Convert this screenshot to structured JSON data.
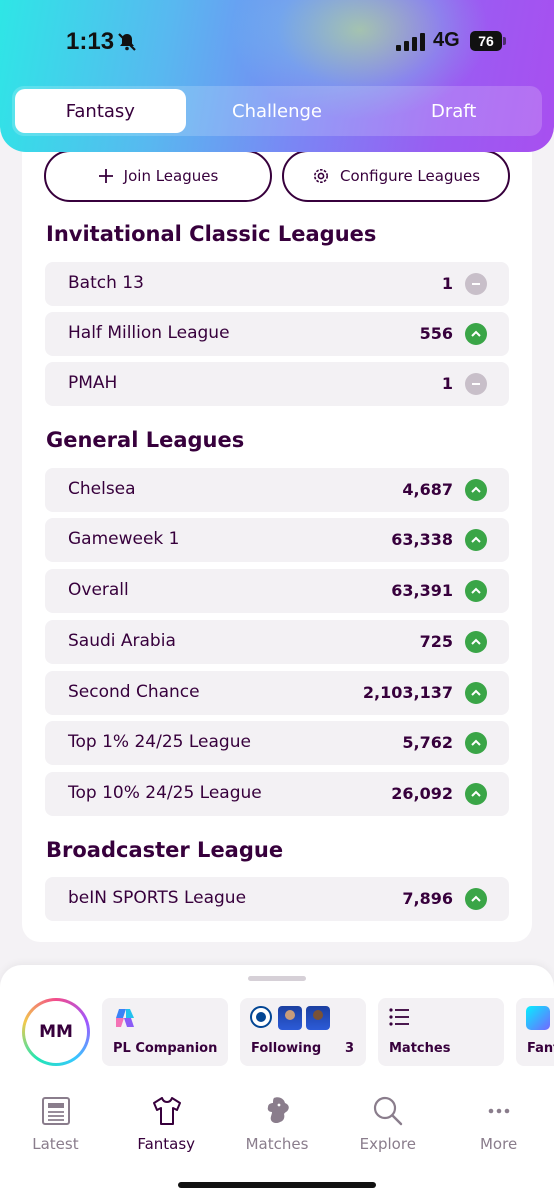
{
  "status": {
    "time": "1:13",
    "network": "4G",
    "battery": "76"
  },
  "tabs": [
    {
      "label": "Fantasy",
      "active": true
    },
    {
      "label": "Challenge",
      "active": false
    },
    {
      "label": "Draft",
      "active": false
    }
  ],
  "actions": {
    "join": "Join Leagues",
    "configure": "Configure Leagues"
  },
  "sections": {
    "invitational": {
      "title": "Invitational Classic Leagues",
      "rows": [
        {
          "name": "Batch 13",
          "rank": "1",
          "movement": "same"
        },
        {
          "name": "Half Million League",
          "rank": "556",
          "movement": "up"
        },
        {
          "name": "PMAH",
          "rank": "1",
          "movement": "same"
        }
      ]
    },
    "general": {
      "title": "General Leagues",
      "rows": [
        {
          "name": "Chelsea",
          "rank": "4,687",
          "movement": "up"
        },
        {
          "name": "Gameweek 1",
          "rank": "63,338",
          "movement": "up"
        },
        {
          "name": "Overall",
          "rank": "63,391",
          "movement": "up"
        },
        {
          "name": "Saudi Arabia",
          "rank": "725",
          "movement": "up"
        },
        {
          "name": "Second Chance",
          "rank": "2,103,137",
          "movement": "up"
        },
        {
          "name": "Top 1% 24/25 League",
          "rank": "5,762",
          "movement": "up"
        },
        {
          "name": "Top 10% 24/25 League",
          "rank": "26,092",
          "movement": "up"
        }
      ]
    },
    "broadcaster": {
      "title": "Broadcaster League",
      "rows": [
        {
          "name": "beIN SPORTS League",
          "rank": "7,896",
          "movement": "up"
        }
      ]
    }
  },
  "sheet": {
    "avatar": "MM",
    "shortcuts": [
      {
        "label": "PL Companion",
        "icon": "copilot-icon"
      },
      {
        "label": "Following",
        "count": "3",
        "icon": "club-badges"
      },
      {
        "label": "Matches",
        "icon": "list-icon"
      },
      {
        "label": "Fant",
        "icon": "pl-fantasy-icon"
      }
    ]
  },
  "nav": [
    {
      "label": "Latest",
      "icon": "news-icon",
      "active": false
    },
    {
      "label": "Fantasy",
      "icon": "shirt-icon",
      "active": true
    },
    {
      "label": "Matches",
      "icon": "lion-icon",
      "active": false
    },
    {
      "label": "Explore",
      "icon": "search-icon",
      "active": false
    },
    {
      "label": "More",
      "icon": "more-icon",
      "active": false
    }
  ],
  "colors": {
    "brand": "#37003c",
    "up": "#3aa547",
    "same": "#c8bfc9"
  }
}
